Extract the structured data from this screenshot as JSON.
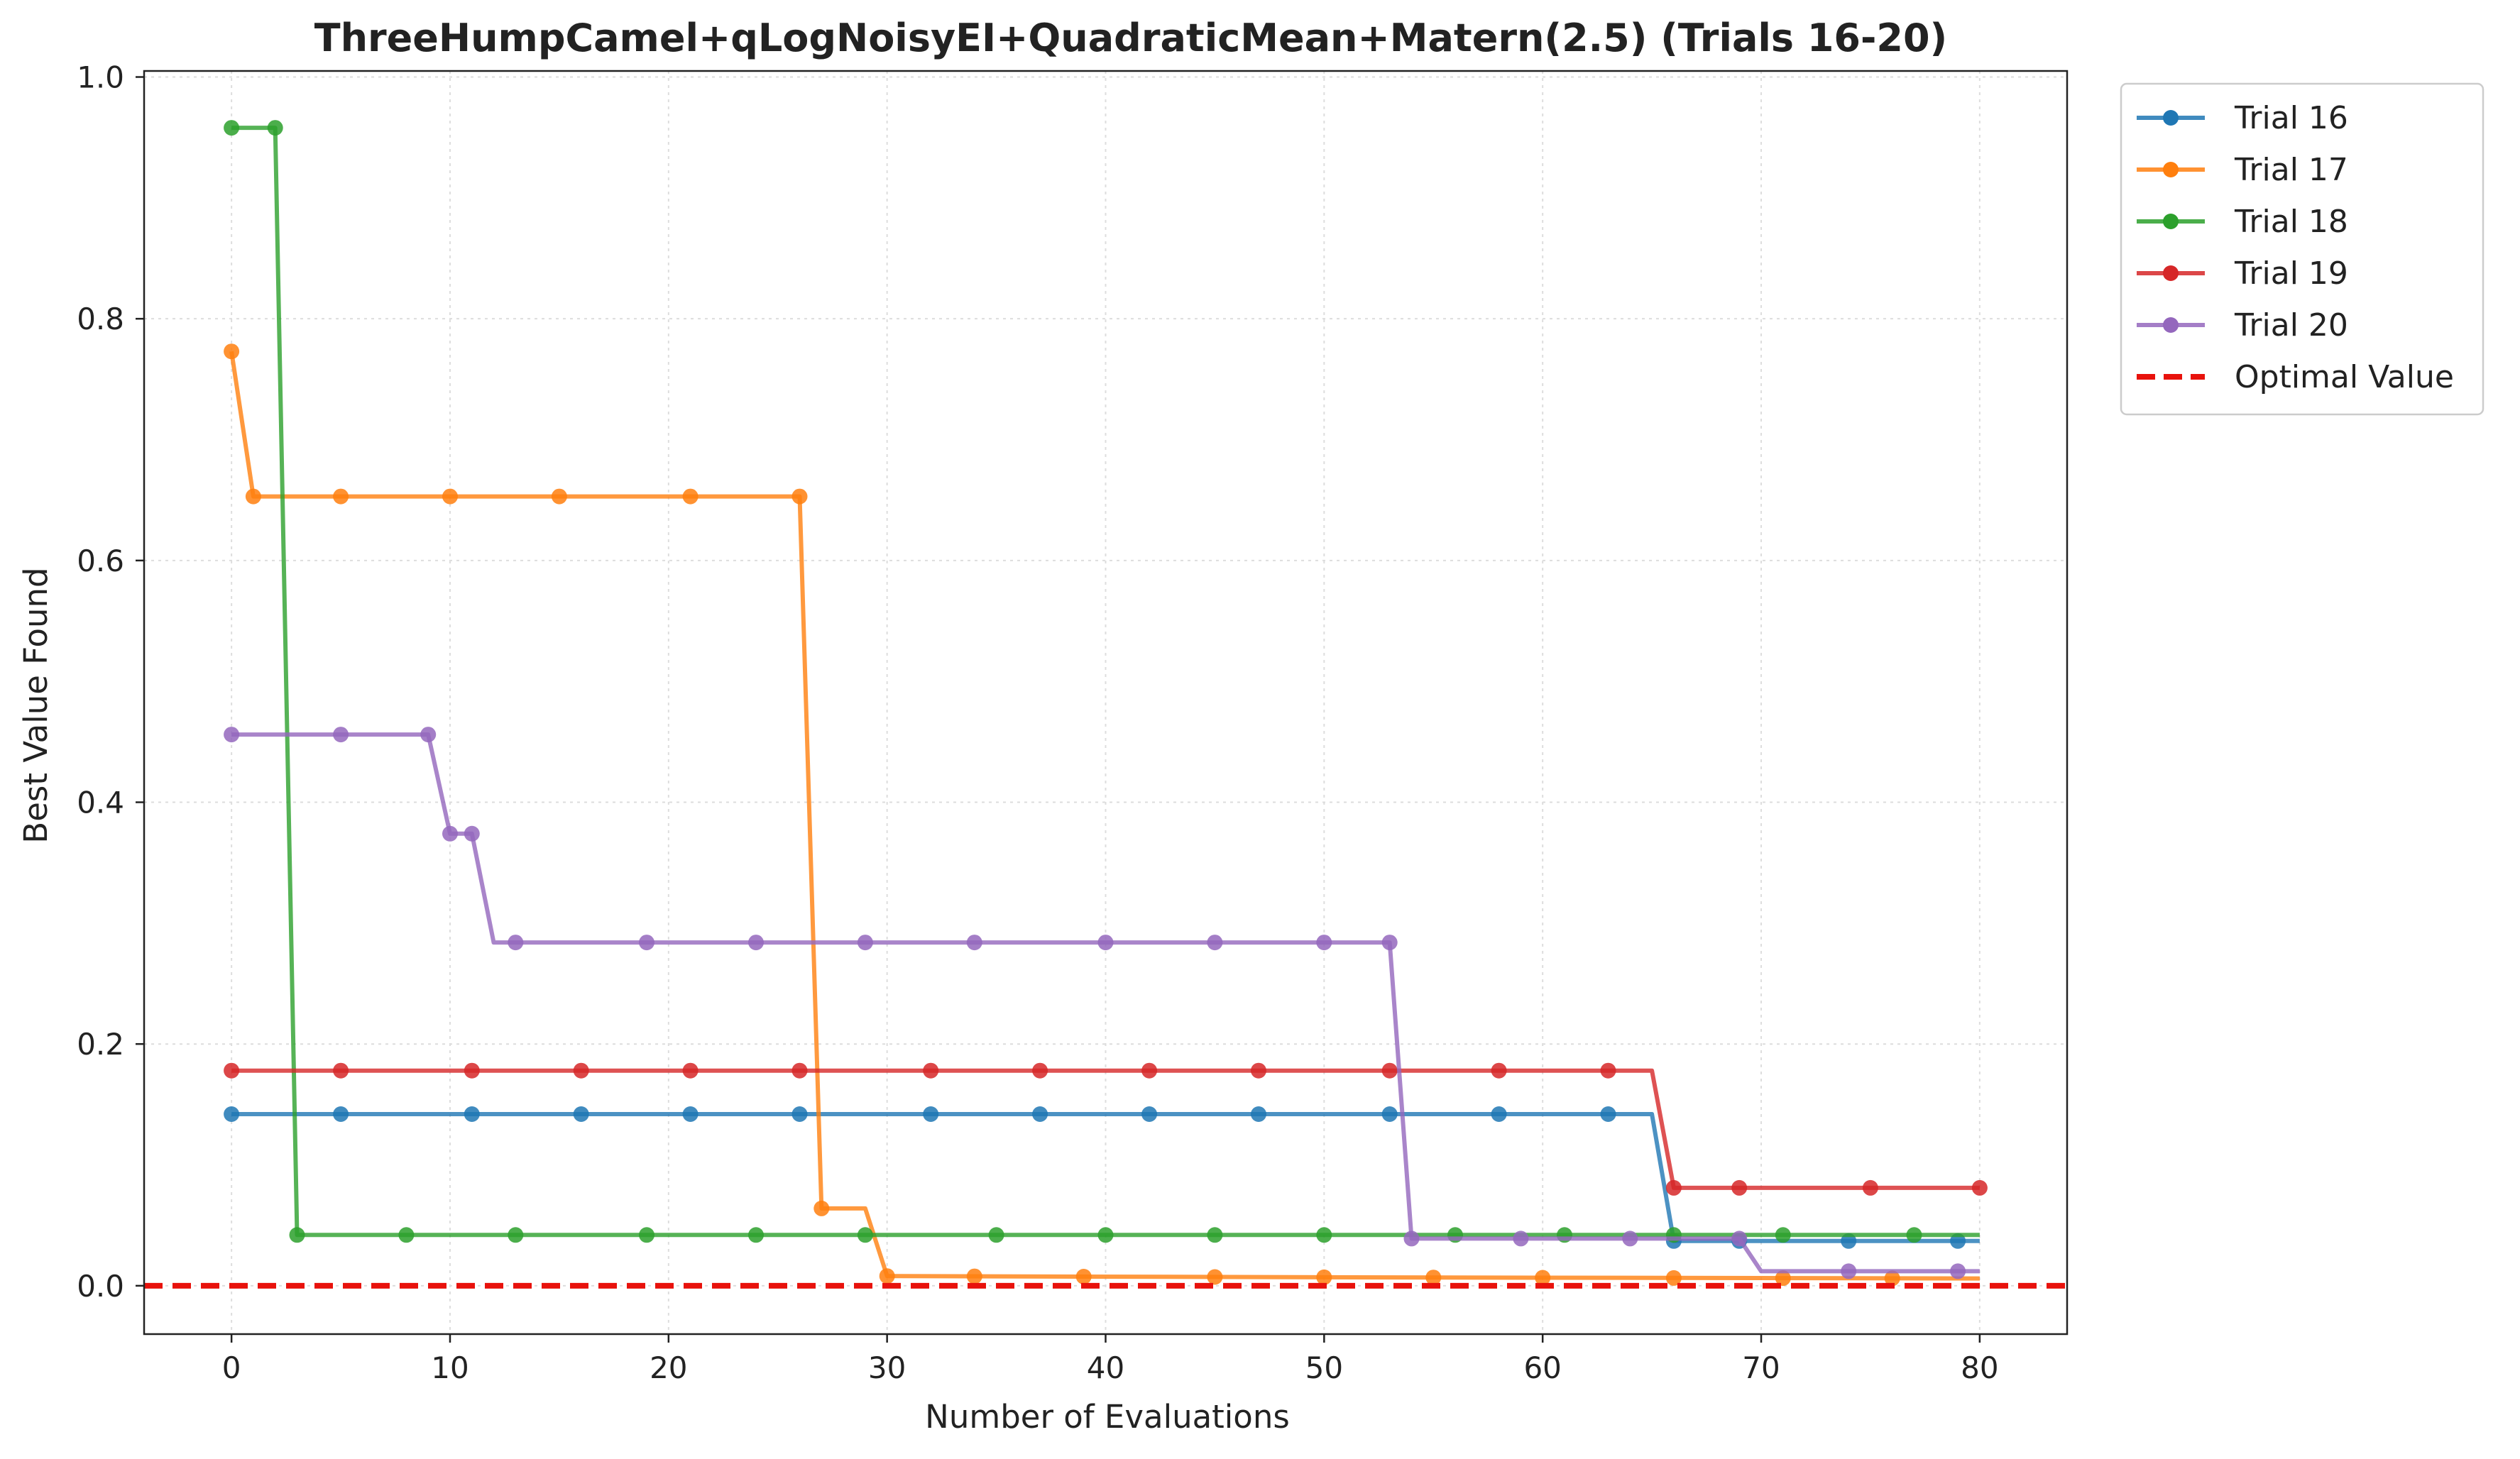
{
  "chart_data": {
    "type": "line",
    "title": "ThreeHumpCamel+qLogNoisyEI+QuadraticMean+Matern(2.5) (Trials 16-20)",
    "xlabel": "Number of Evaluations",
    "ylabel": "Best Value Found",
    "xlim": [
      -4,
      84
    ],
    "ylim": [
      -0.04,
      1.005
    ],
    "xticks": [
      0,
      10,
      20,
      30,
      40,
      50,
      60,
      70,
      80
    ],
    "yticks": [
      0.0,
      0.2,
      0.4,
      0.6,
      0.8,
      1.0
    ],
    "ytick_labels": [
      "0.0",
      "0.2",
      "0.4",
      "0.6",
      "0.8",
      "1.0"
    ],
    "grid": true,
    "legend_position": "outside-top-right",
    "series": [
      {
        "name": "Trial 16",
        "color": "#1f77b4",
        "steps": [
          [
            0,
            0.142
          ],
          [
            65,
            0.142
          ],
          [
            66,
            0.037
          ],
          [
            80,
            0.037
          ]
        ],
        "markers": [
          0,
          5,
          11,
          16,
          21,
          26,
          32,
          37,
          42,
          47,
          53,
          58,
          63,
          66,
          69,
          74,
          79
        ]
      },
      {
        "name": "Trial 17",
        "color": "#ff7f0e",
        "steps": [
          [
            0,
            0.773
          ],
          [
            1,
            0.653
          ],
          [
            26,
            0.653
          ],
          [
            27,
            0.064
          ],
          [
            29,
            0.064
          ],
          [
            30,
            0.008
          ],
          [
            50,
            0.007
          ],
          [
            80,
            0.006
          ]
        ],
        "markers": [
          0,
          1,
          5,
          10,
          15,
          21,
          26,
          27,
          30,
          34,
          39,
          45,
          50,
          55,
          60,
          66,
          71,
          76
        ]
      },
      {
        "name": "Trial 18",
        "color": "#2ca02c",
        "steps": [
          [
            0,
            0.958
          ],
          [
            2,
            0.958
          ],
          [
            3,
            0.042
          ],
          [
            80,
            0.042
          ]
        ],
        "markers": [
          0,
          2,
          3,
          8,
          13,
          19,
          24,
          29,
          35,
          40,
          45,
          50,
          56,
          61,
          66,
          71,
          77
        ]
      },
      {
        "name": "Trial 19",
        "color": "#d62728",
        "steps": [
          [
            0,
            0.178
          ],
          [
            65,
            0.178
          ],
          [
            66,
            0.081
          ],
          [
            80,
            0.081
          ]
        ],
        "markers": [
          0,
          5,
          11,
          16,
          21,
          26,
          32,
          37,
          42,
          47,
          53,
          58,
          63,
          66,
          69,
          75,
          80
        ]
      },
      {
        "name": "Trial 20",
        "color": "#9467bd",
        "steps": [
          [
            0,
            0.456
          ],
          [
            9,
            0.456
          ],
          [
            10,
            0.374
          ],
          [
            11,
            0.374
          ],
          [
            12,
            0.284
          ],
          [
            53,
            0.284
          ],
          [
            54,
            0.039
          ],
          [
            69,
            0.039
          ],
          [
            70,
            0.012
          ],
          [
            80,
            0.012
          ]
        ],
        "markers": [
          0,
          5,
          9,
          10,
          11,
          13,
          19,
          24,
          29,
          34,
          40,
          45,
          50,
          53,
          54,
          59,
          64,
          69,
          74,
          79
        ]
      }
    ],
    "reference_line": {
      "name": "Optimal Value",
      "y": 0.0,
      "color": "#e8120c",
      "style": "dashed"
    }
  }
}
